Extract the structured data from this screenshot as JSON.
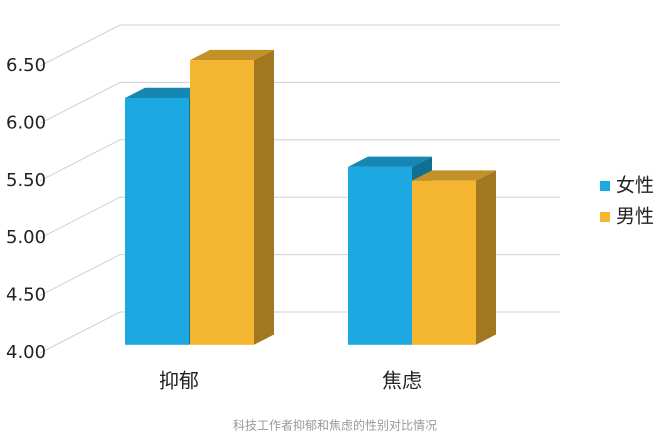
{
  "chart_data": {
    "type": "bar",
    "categories": [
      "抑郁",
      "焦虑"
    ],
    "series": [
      {
        "name": "女性",
        "color": "#1ca8e0",
        "values": [
          6.15,
          5.55
        ]
      },
      {
        "name": "男性",
        "color": "#f4b531",
        "values": [
          6.48,
          5.43
        ]
      }
    ],
    "ylim": [
      4,
      6.5
    ],
    "yticks": [
      {
        "value": 4,
        "label": "4.00"
      },
      {
        "value": 4.5,
        "label": "4.50"
      },
      {
        "value": 5,
        "label": "5.00"
      },
      {
        "value": 5.5,
        "label": "5.50"
      },
      {
        "value": 6,
        "label": "6.00"
      },
      {
        "value": 6.5,
        "label": "6.50"
      }
    ],
    "grid": true,
    "legend": "right",
    "caption": "科技工作者抑郁和焦虑的性别对比情况"
  }
}
